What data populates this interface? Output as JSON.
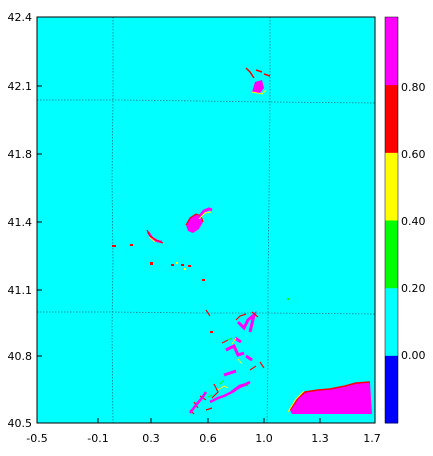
{
  "chart_data": {
    "type": "heatmap",
    "title": "",
    "xlabel": "",
    "ylabel": "",
    "xlim": [
      -0.5,
      1.7
    ],
    "ylim": [
      40.5,
      42.4
    ],
    "x_ticks": [
      "-0.5",
      "-0.1",
      "0.3",
      "0.6",
      "1.0",
      "1.3",
      "1.7"
    ],
    "y_ticks": [
      "42.4",
      "42.1",
      "41.8",
      "41.4",
      "41.1",
      "40.8",
      "40.5"
    ],
    "colorbar": {
      "labels": [
        "0.00",
        "0.20",
        "0.40",
        "0.60",
        "0.80"
      ],
      "levels": [
        {
          "from": -0.2,
          "to": 0.0,
          "color": "#0000ff"
        },
        {
          "from": 0.0,
          "to": 0.2,
          "color": "#00ffff"
        },
        {
          "from": 0.2,
          "to": 0.4,
          "color": "#00ff00"
        },
        {
          "from": 0.4,
          "to": 0.6,
          "color": "#ffff00"
        },
        {
          "from": 0.6,
          "to": 0.8,
          "color": "#ff0000"
        },
        {
          "from": 0.8,
          "to": 1.0,
          "color": "#ff00ff"
        }
      ]
    },
    "background_color": "#00ffff",
    "patches": [
      {
        "value": 0.9,
        "color": "#ff00ff",
        "lon": [
          1.12,
          1.66
        ],
        "lat": [
          40.54,
          40.67
        ]
      },
      {
        "value": 0.9,
        "color": "#ff00ff",
        "lon": [
          0.5,
          0.58
        ],
        "lat": [
          41.35,
          41.42
        ]
      },
      {
        "value": 0.9,
        "color": "#ff00ff",
        "lon": [
          0.94,
          0.99
        ],
        "lat": [
          42.05,
          42.08
        ]
      }
    ]
  }
}
